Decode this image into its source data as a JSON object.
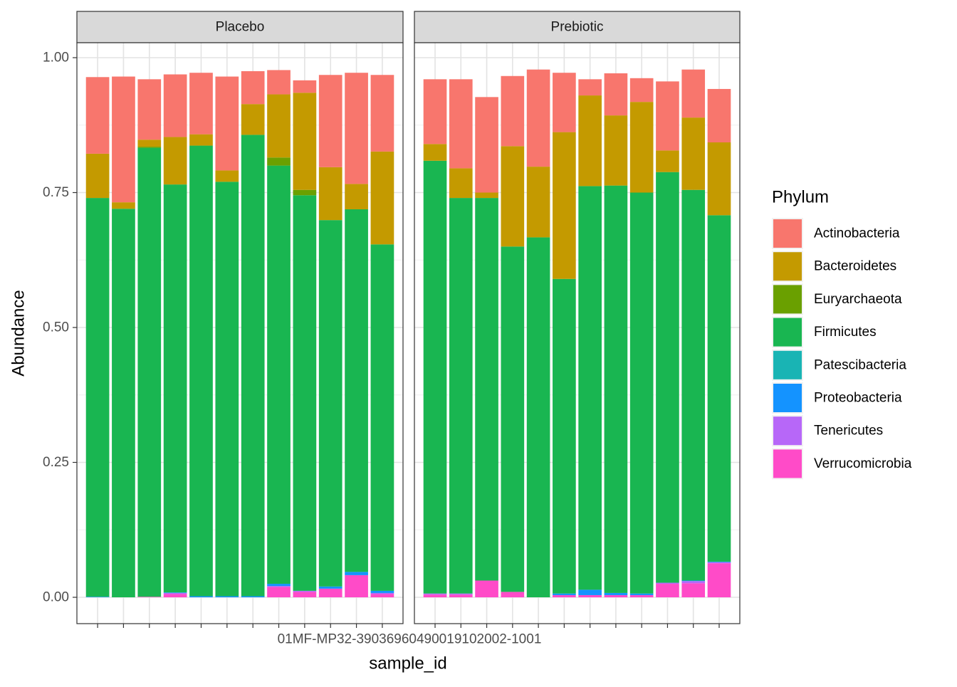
{
  "chart_data": {
    "type": "bar",
    "stacked": true,
    "faceted": true,
    "xlabel": "sample_id",
    "ylabel": "Abundance",
    "ylim": [
      0,
      1.05
    ],
    "y_ticks": [
      "0.00",
      "0.25",
      "0.50",
      "0.75",
      "1.00"
    ],
    "y_tick_values": [
      0,
      0.25,
      0.5,
      0.75,
      1.0
    ],
    "grid": true,
    "x_tick_text": "01MF-MP32-39036960490019102002-1001",
    "legend": {
      "title": "Phylum",
      "position": "right",
      "entries": [
        {
          "name": "Actinobacteria",
          "color": "#F8766D"
        },
        {
          "name": "Bacteroidetes",
          "color": "#C49A00"
        },
        {
          "name": "Euryarchaeota",
          "color": "#53B400"
        },
        {
          "name": "Firmicutes",
          "color": "#00C094"
        },
        {
          "name": "Patescibacteria",
          "color": "#00B6EB"
        },
        {
          "name": "Proteobacteria",
          "color": "#06A4FF"
        },
        {
          "name": "Tenericutes",
          "color": "#A58AFF"
        },
        {
          "name": "Verrucomicrobia",
          "color": "#FB61D7"
        }
      ]
    },
    "series_colors": {
      "Actinobacteria": "#F8766D",
      "Bacteroidetes": "#C49A00",
      "Euryarchaeota": "#6AA000",
      "Firmicutes": "#19B651",
      "Patescibacteria": "#19B4B4",
      "Proteobacteria": "#1493FF",
      "Tenericutes": "#B767F8",
      "Verrucomicrobia": "#FF4BC8"
    },
    "facets": [
      {
        "label": "Placebo",
        "bars": [
          {
            "Verrucomicrobia": 0.0,
            "Tenericutes": 0.0,
            "Proteobacteria": 0.001,
            "Patescibacteria": 0.0,
            "Firmicutes": 0.739,
            "Euryarchaeota": 0.0,
            "Bacteroidetes": 0.082,
            "Actinobacteria": 0.142
          },
          {
            "Verrucomicrobia": 0.0,
            "Tenericutes": 0.0,
            "Proteobacteria": 0.0,
            "Patescibacteria": 0.0,
            "Firmicutes": 0.72,
            "Euryarchaeota": 0.0,
            "Bacteroidetes": 0.012,
            "Actinobacteria": 0.233
          },
          {
            "Verrucomicrobia": 0.001,
            "Tenericutes": 0.0,
            "Proteobacteria": 0.0,
            "Patescibacteria": 0.0,
            "Firmicutes": 0.832,
            "Euryarchaeota": 0.002,
            "Bacteroidetes": 0.013,
            "Actinobacteria": 0.112
          },
          {
            "Verrucomicrobia": 0.006,
            "Tenericutes": 0.002,
            "Proteobacteria": 0.001,
            "Patescibacteria": 0.0,
            "Firmicutes": 0.756,
            "Euryarchaeota": 0.0,
            "Bacteroidetes": 0.088,
            "Actinobacteria": 0.116
          },
          {
            "Verrucomicrobia": 0.0,
            "Tenericutes": 0.0,
            "Proteobacteria": 0.002,
            "Patescibacteria": 0.0,
            "Firmicutes": 0.835,
            "Euryarchaeota": 0.0,
            "Bacteroidetes": 0.021,
            "Actinobacteria": 0.114
          },
          {
            "Verrucomicrobia": 0.0,
            "Tenericutes": 0.0,
            "Proteobacteria": 0.002,
            "Patescibacteria": 0.0,
            "Firmicutes": 0.768,
            "Euryarchaeota": 0.0,
            "Bacteroidetes": 0.021,
            "Actinobacteria": 0.174
          },
          {
            "Verrucomicrobia": 0.0,
            "Tenericutes": 0.0,
            "Proteobacteria": 0.002,
            "Patescibacteria": 0.0,
            "Firmicutes": 0.855,
            "Euryarchaeota": 0.0,
            "Bacteroidetes": 0.057,
            "Actinobacteria": 0.061
          },
          {
            "Verrucomicrobia": 0.019,
            "Tenericutes": 0.002,
            "Proteobacteria": 0.004,
            "Patescibacteria": 0.0,
            "Firmicutes": 0.775,
            "Euryarchaeota": 0.015,
            "Bacteroidetes": 0.117,
            "Actinobacteria": 0.045
          },
          {
            "Verrucomicrobia": 0.01,
            "Tenericutes": 0.002,
            "Proteobacteria": 0.0,
            "Patescibacteria": 0.0,
            "Firmicutes": 0.733,
            "Euryarchaeota": 0.01,
            "Bacteroidetes": 0.18,
            "Actinobacteria": 0.023
          },
          {
            "Verrucomicrobia": 0.016,
            "Tenericutes": 0.0,
            "Proteobacteria": 0.004,
            "Patescibacteria": 0.0,
            "Firmicutes": 0.679,
            "Euryarchaeota": 0.0,
            "Bacteroidetes": 0.098,
            "Actinobacteria": 0.171
          },
          {
            "Verrucomicrobia": 0.041,
            "Tenericutes": 0.0,
            "Proteobacteria": 0.006,
            "Patescibacteria": 0.0,
            "Firmicutes": 0.672,
            "Euryarchaeota": 0.0,
            "Bacteroidetes": 0.047,
            "Actinobacteria": 0.206
          },
          {
            "Verrucomicrobia": 0.006,
            "Tenericutes": 0.002,
            "Proteobacteria": 0.004,
            "Patescibacteria": 0.0,
            "Firmicutes": 0.642,
            "Euryarchaeota": 0.0,
            "Bacteroidetes": 0.172,
            "Actinobacteria": 0.142
          }
        ]
      },
      {
        "label": "Prebiotic",
        "bars": [
          {
            "Verrucomicrobia": 0.005,
            "Tenericutes": 0.002,
            "Proteobacteria": 0.0,
            "Patescibacteria": 0.0,
            "Firmicutes": 0.802,
            "Euryarchaeota": 0.0,
            "Bacteroidetes": 0.031,
            "Actinobacteria": 0.12
          },
          {
            "Verrucomicrobia": 0.005,
            "Tenericutes": 0.002,
            "Proteobacteria": 0.0,
            "Patescibacteria": 0.0,
            "Firmicutes": 0.733,
            "Euryarchaeota": 0.0,
            "Bacteroidetes": 0.055,
            "Actinobacteria": 0.165
          },
          {
            "Verrucomicrobia": 0.031,
            "Tenericutes": 0.0,
            "Proteobacteria": 0.0,
            "Patescibacteria": 0.0,
            "Firmicutes": 0.709,
            "Euryarchaeota": 0.0,
            "Bacteroidetes": 0.01,
            "Actinobacteria": 0.177
          },
          {
            "Verrucomicrobia": 0.01,
            "Tenericutes": 0.0,
            "Proteobacteria": 0.0,
            "Patescibacteria": 0.0,
            "Firmicutes": 0.64,
            "Euryarchaeota": 0.0,
            "Bacteroidetes": 0.186,
            "Actinobacteria": 0.13
          },
          {
            "Verrucomicrobia": 0.0,
            "Tenericutes": 0.0,
            "Proteobacteria": 0.0,
            "Patescibacteria": 0.0,
            "Firmicutes": 0.667,
            "Euryarchaeota": 0.0,
            "Bacteroidetes": 0.131,
            "Actinobacteria": 0.18
          },
          {
            "Verrucomicrobia": 0.004,
            "Tenericutes": 0.0,
            "Proteobacteria": 0.003,
            "Patescibacteria": 0.0,
            "Firmicutes": 0.583,
            "Euryarchaeota": 0.0,
            "Bacteroidetes": 0.272,
            "Actinobacteria": 0.11
          },
          {
            "Verrucomicrobia": 0.004,
            "Tenericutes": 0.0,
            "Proteobacteria": 0.01,
            "Patescibacteria": 0.0,
            "Firmicutes": 0.748,
            "Euryarchaeota": 0.0,
            "Bacteroidetes": 0.168,
            "Actinobacteria": 0.03
          },
          {
            "Verrucomicrobia": 0.004,
            "Tenericutes": 0.0,
            "Proteobacteria": 0.004,
            "Patescibacteria": 0.0,
            "Firmicutes": 0.755,
            "Euryarchaeota": 0.0,
            "Bacteroidetes": 0.13,
            "Actinobacteria": 0.078
          },
          {
            "Verrucomicrobia": 0.004,
            "Tenericutes": 0.0,
            "Proteobacteria": 0.003,
            "Patescibacteria": 0.0,
            "Firmicutes": 0.743,
            "Euryarchaeota": 0.0,
            "Bacteroidetes": 0.168,
            "Actinobacteria": 0.044
          },
          {
            "Verrucomicrobia": 0.025,
            "Tenericutes": 0.002,
            "Proteobacteria": 0.0,
            "Patescibacteria": 0.0,
            "Firmicutes": 0.761,
            "Euryarchaeota": 0.0,
            "Bacteroidetes": 0.04,
            "Actinobacteria": 0.128
          },
          {
            "Verrucomicrobia": 0.026,
            "Tenericutes": 0.004,
            "Proteobacteria": 0.001,
            "Patescibacteria": 0.0,
            "Firmicutes": 0.724,
            "Euryarchaeota": 0.0,
            "Bacteroidetes": 0.134,
            "Actinobacteria": 0.089
          },
          {
            "Verrucomicrobia": 0.063,
            "Tenericutes": 0.002,
            "Proteobacteria": 0.001,
            "Patescibacteria": 0.0,
            "Firmicutes": 0.642,
            "Euryarchaeota": 0.0,
            "Bacteroidetes": 0.135,
            "Actinobacteria": 0.099
          }
        ]
      }
    ]
  }
}
